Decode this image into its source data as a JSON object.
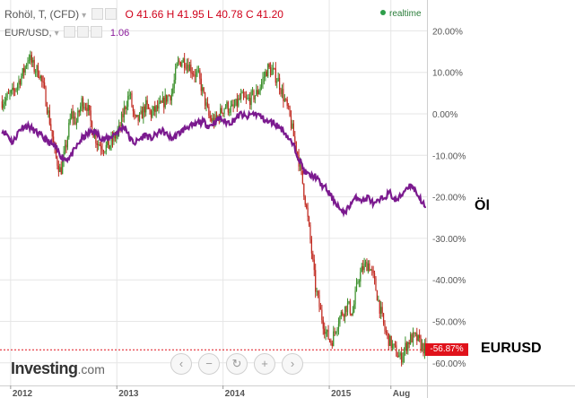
{
  "header": {
    "instrument": "Rohöl, T, (CFD)",
    "ohlc": {
      "o_label": "O",
      "o": "41.66",
      "h_label": "H",
      "h": "41.95",
      "l_label": "L",
      "l": "40.78",
      "c_label": "C",
      "c": "41.20"
    },
    "realtime": "realtime",
    "overlay_symbol": "EUR/USD,",
    "overlay_value": "1.06"
  },
  "brand": {
    "name": "Investing",
    "suffix": ".com"
  },
  "external_labels": {
    "oil": "Öl",
    "eurusd": "EURUSD"
  },
  "nav_buttons": [
    {
      "name": "scroll-left-icon",
      "glyph": "‹"
    },
    {
      "name": "zoom-out-icon",
      "glyph": "−"
    },
    {
      "name": "reset-icon",
      "glyph": "↻"
    },
    {
      "name": "zoom-in-icon",
      "glyph": "+"
    },
    {
      "name": "scroll-right-icon",
      "glyph": "›"
    }
  ],
  "colors": {
    "up": "#3a8f2a",
    "down": "#c0281e",
    "overlay": "#7b1a8f",
    "price_tag": "#e0121b",
    "grid": "#e6e6e6"
  },
  "chart_data": {
    "type": "line",
    "y_unit": "%",
    "ylim": [
      -62,
      22
    ],
    "y_ticks": [
      "20.00%",
      "10.00%",
      "0.00%",
      "-10.00%",
      "-20.00%",
      "-30.00%",
      "-40.00%",
      "-50.00%",
      "-60.00%"
    ],
    "y_tick_values": [
      20,
      10,
      0,
      -10,
      -20,
      -30,
      -40,
      -50,
      -60
    ],
    "x_ticks": [
      "2012",
      "2013",
      "2014",
      "2015",
      "Aug"
    ],
    "x_tick_values": [
      2012.0,
      2013.0,
      2014.0,
      2015.0,
      2015.58
    ],
    "xlim": [
      2011.9,
      2015.92
    ],
    "last_price_label": "-56.87%",
    "last_price_value": -56.87,
    "grid": true,
    "series": [
      {
        "name": "Rohöl, T, (CFD)",
        "style": "candles",
        "x": [
          2011.92,
          2011.97,
          2012.02,
          2012.08,
          2012.12,
          2012.17,
          2012.22,
          2012.27,
          2012.32,
          2012.37,
          2012.42,
          2012.47,
          2012.52,
          2012.57,
          2012.62,
          2012.67,
          2012.72,
          2012.77,
          2012.82,
          2012.87,
          2012.92,
          2012.97,
          2013.02,
          2013.08,
          2013.12,
          2013.17,
          2013.22,
          2013.27,
          2013.32,
          2013.37,
          2013.42,
          2013.47,
          2013.52,
          2013.57,
          2013.62,
          2013.67,
          2013.72,
          2013.77,
          2013.82,
          2013.87,
          2013.92,
          2013.97,
          2014.02,
          2014.08,
          2014.12,
          2014.17,
          2014.22,
          2014.27,
          2014.32,
          2014.37,
          2014.42,
          2014.47,
          2014.52,
          2014.57,
          2014.62,
          2014.67,
          2014.72,
          2014.77,
          2014.82,
          2014.87,
          2014.92,
          2014.97,
          2015.02,
          2015.08,
          2015.12,
          2015.17,
          2015.22,
          2015.27,
          2015.32,
          2015.37,
          2015.42,
          2015.47,
          2015.52,
          2015.57,
          2015.62,
          2015.67,
          2015.72,
          2015.77,
          2015.82,
          2015.87,
          2015.91
        ],
        "y": [
          3,
          4,
          5,
          8,
          10,
          14,
          11,
          10,
          5,
          -2,
          -10,
          -14,
          -8,
          0,
          -2,
          3,
          2,
          -4,
          -7,
          -8,
          -8,
          -6,
          -4,
          2,
          5,
          -2,
          -1,
          2,
          0,
          1,
          2,
          4,
          5,
          12,
          13,
          12,
          10,
          9,
          4,
          -1,
          -2,
          0,
          2,
          1,
          2,
          4,
          3,
          4,
          5,
          8,
          11,
          10,
          8,
          4,
          0,
          -6,
          -12,
          -20,
          -30,
          -42,
          -48,
          -53,
          -55,
          -50,
          -48,
          -46,
          -48,
          -40,
          -37,
          -36,
          -40,
          -46,
          -52,
          -55,
          -57,
          -59,
          -56,
          -54,
          -54,
          -56,
          -57
        ]
      },
      {
        "name": "EUR/USD",
        "style": "line",
        "x": [
          2011.92,
          2011.97,
          2012.02,
          2012.08,
          2012.12,
          2012.17,
          2012.22,
          2012.27,
          2012.32,
          2012.37,
          2012.42,
          2012.47,
          2012.52,
          2012.57,
          2012.62,
          2012.67,
          2012.72,
          2012.77,
          2012.82,
          2012.87,
          2012.92,
          2012.97,
          2013.02,
          2013.08,
          2013.12,
          2013.17,
          2013.22,
          2013.27,
          2013.32,
          2013.37,
          2013.42,
          2013.47,
          2013.52,
          2013.57,
          2013.62,
          2013.67,
          2013.72,
          2013.77,
          2013.82,
          2013.87,
          2013.92,
          2013.97,
          2014.02,
          2014.08,
          2014.12,
          2014.17,
          2014.22,
          2014.27,
          2014.32,
          2014.37,
          2014.42,
          2014.47,
          2014.52,
          2014.57,
          2014.62,
          2014.67,
          2014.72,
          2014.77,
          2014.82,
          2014.87,
          2014.92,
          2014.97,
          2015.02,
          2015.08,
          2015.12,
          2015.17,
          2015.22,
          2015.27,
          2015.32,
          2015.37,
          2015.42,
          2015.47,
          2015.52,
          2015.57,
          2015.62,
          2015.67,
          2015.72,
          2015.77,
          2015.82,
          2015.87,
          2015.91
        ],
        "y": [
          -4,
          -5,
          -7,
          -4,
          -3,
          -3,
          -4,
          -5,
          -6,
          -7,
          -8,
          -10,
          -11,
          -10,
          -8,
          -6,
          -5,
          -4,
          -5,
          -6,
          -6,
          -5,
          -4,
          -3,
          -6,
          -7,
          -6,
          -5,
          -6,
          -5,
          -4,
          -5,
          -6,
          -5,
          -4,
          -3,
          -3,
          -2,
          -2,
          -3,
          -2,
          -1,
          -2,
          -2,
          -1,
          0,
          -1,
          0,
          0,
          -1,
          -2,
          -2,
          -3,
          -4,
          -6,
          -8,
          -11,
          -14,
          -15,
          -15,
          -17,
          -18,
          -20,
          -22,
          -24,
          -23,
          -21,
          -20,
          -21,
          -20,
          -22,
          -21,
          -20,
          -19,
          -21,
          -20,
          -18,
          -17,
          -19,
          -21,
          -23
        ]
      }
    ]
  }
}
